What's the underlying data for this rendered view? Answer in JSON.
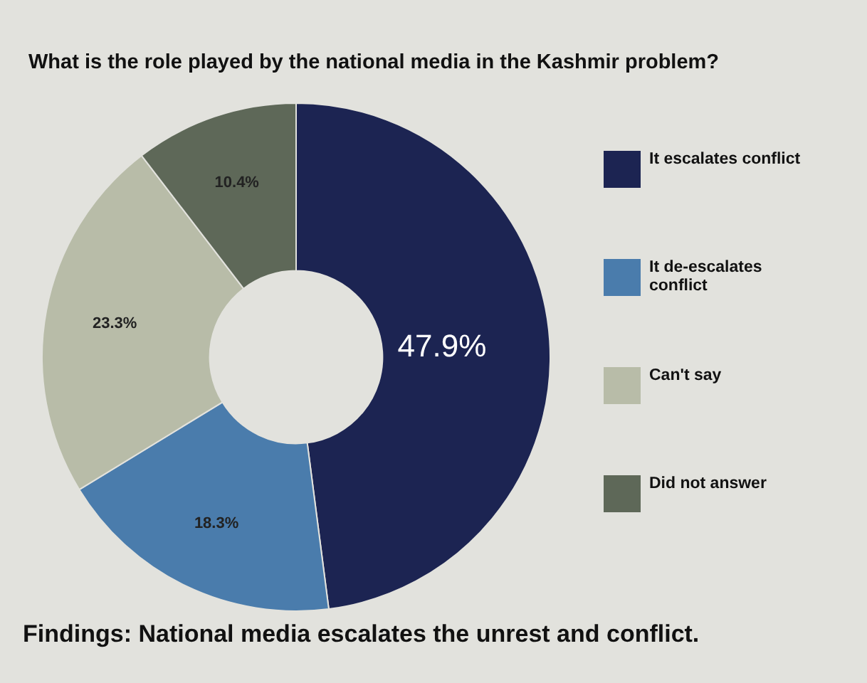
{
  "chart_data": {
    "type": "donut",
    "title": "What is the role played by the national media in the Kashmir problem?",
    "categories": [
      "It escalates conflict",
      "It de-escalates conflict",
      "Can't say",
      "Did not answer"
    ],
    "values": [
      47.9,
      18.3,
      23.3,
      10.4
    ],
    "colors": [
      "#1c2452",
      "#4a7cac",
      "#b8bca8",
      "#5e6858"
    ],
    "value_labels": [
      "47.9%",
      "18.3%",
      "23.3%",
      "10.4%"
    ],
    "legend": "right",
    "annotations": [
      "Findings: National media escalates the unrest and conflict."
    ]
  }
}
